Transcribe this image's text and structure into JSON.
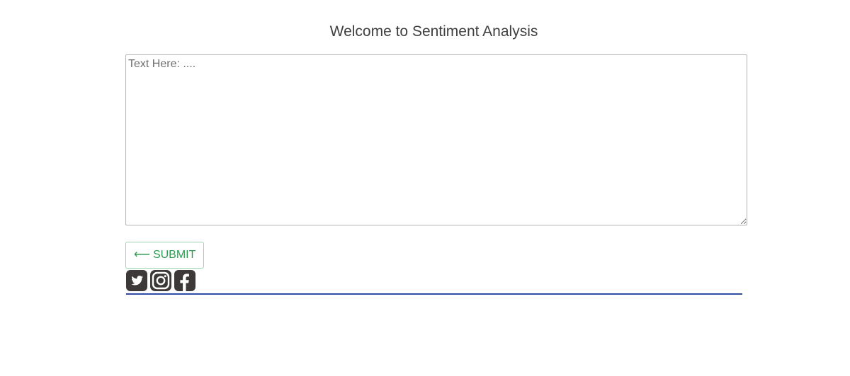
{
  "header": {
    "title": "Welcome to Sentiment Analysis"
  },
  "form": {
    "textarea_placeholder": "Text Here: ....",
    "textarea_value": "",
    "submit_arrow": "⟵",
    "submit_label": "SUBMIT"
  },
  "social": {
    "icons": [
      "twitter-icon",
      "instagram-icon",
      "facebook-icon"
    ],
    "icon_color": "#3d3938"
  },
  "colors": {
    "title": "#3f3f3f",
    "submit_text": "#2e9a52",
    "submit_border": "#9fd4b0",
    "divider": "#2d4ea3"
  }
}
